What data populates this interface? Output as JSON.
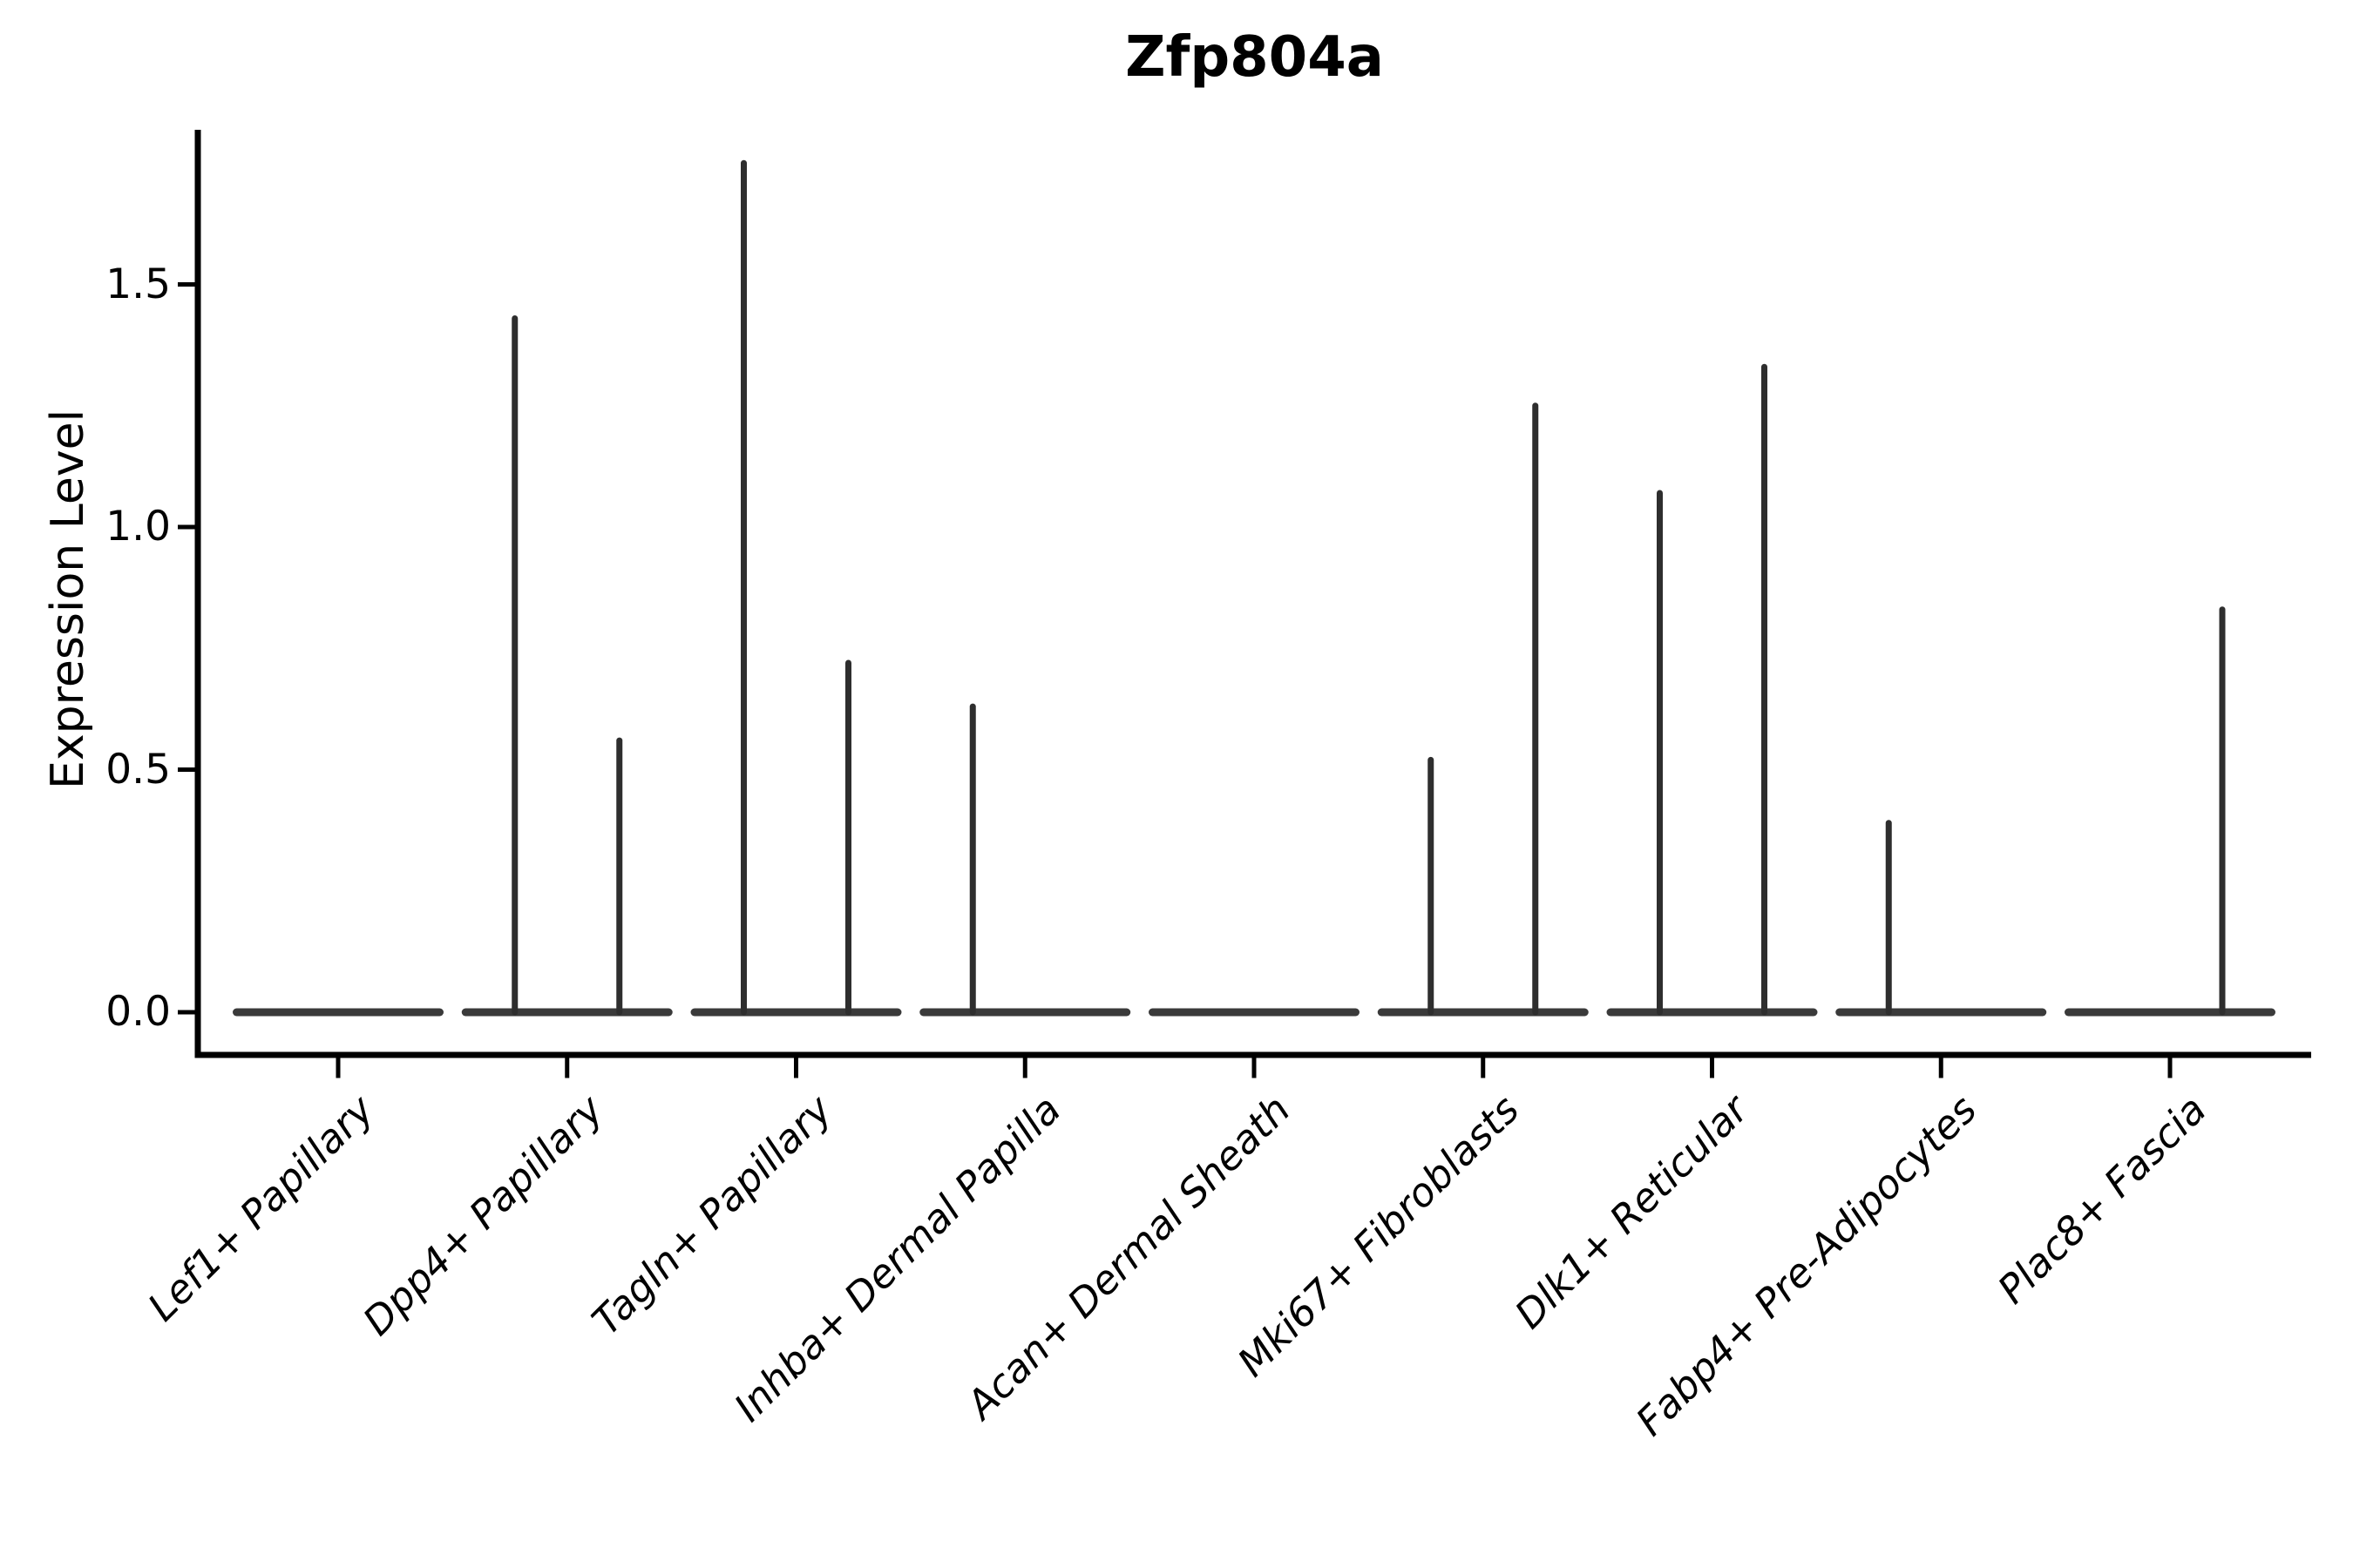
{
  "figure": {
    "background": "#ffffff"
  },
  "chart_data": {
    "type": "violin",
    "title": "Zfp804a",
    "ylabel": "Expression Level",
    "xlabel": "",
    "ylim": [
      -0.09,
      1.82
    ],
    "grid": false,
    "legend": "none",
    "yticks": [
      {
        "value": 0.0,
        "label": "0.0"
      },
      {
        "value": 0.5,
        "label": "0.5"
      },
      {
        "value": 1.0,
        "label": "1.0"
      },
      {
        "value": 1.5,
        "label": "1.5"
      }
    ],
    "categories": [
      "Lef1+ Papillary",
      "Dpp4+ Papillary",
      "Tagln+ Papillary",
      "Inhba+ Dermal Papilla",
      "Acan+ Dermal Sheath",
      "Mki67+ Fibroblasts",
      "Dlk1+ Reticular",
      "Fabp4+ Pre-Adipocytes",
      "Plac8+ Fascia"
    ],
    "violins": [
      {
        "category": "Lef1+ Papillary",
        "base_value": 0,
        "spikes": []
      },
      {
        "category": "Dpp4+ Papillary",
        "base_value": 0,
        "spikes": [
          {
            "side": "left",
            "value": 1.43
          },
          {
            "side": "right",
            "value": 0.56
          }
        ]
      },
      {
        "category": "Tagln+ Papillary",
        "base_value": 0,
        "spikes": [
          {
            "side": "left",
            "value": 1.75
          },
          {
            "side": "right",
            "value": 0.72
          }
        ]
      },
      {
        "category": "Inhba+ Dermal Papilla",
        "base_value": 0,
        "spikes": [
          {
            "side": "left",
            "value": 0.63
          }
        ]
      },
      {
        "category": "Acan+ Dermal Sheath",
        "base_value": 0,
        "spikes": []
      },
      {
        "category": "Mki67+ Fibroblasts",
        "base_value": 0,
        "spikes": [
          {
            "side": "left",
            "value": 0.52
          },
          {
            "side": "right",
            "value": 1.25
          }
        ]
      },
      {
        "category": "Dlk1+ Reticular",
        "base_value": 0,
        "spikes": [
          {
            "side": "left",
            "value": 1.07
          },
          {
            "side": "right",
            "value": 1.33
          }
        ]
      },
      {
        "category": "Fabp4+ Pre-Adipocytes",
        "base_value": 0,
        "spikes": [
          {
            "side": "left",
            "value": 0.39
          }
        ]
      },
      {
        "category": "Plac8+ Fascia",
        "base_value": 0,
        "spikes": [
          {
            "side": "right",
            "value": 0.83
          }
        ]
      }
    ],
    "colors": {
      "violin_body": "#3a3a3a",
      "spike": "#2e2e2e",
      "axis": "#000000",
      "text": "#000000"
    }
  }
}
